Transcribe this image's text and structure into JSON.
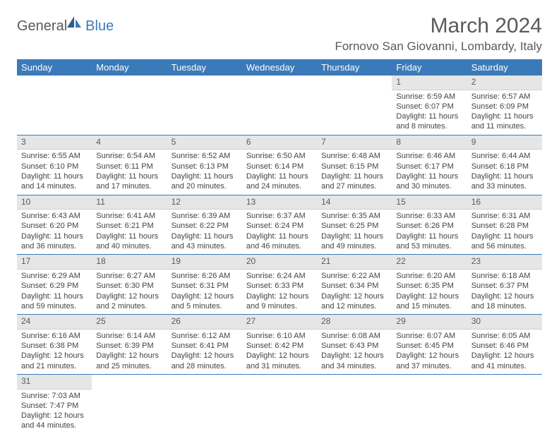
{
  "logo": {
    "part1": "General",
    "part2": "Blue"
  },
  "title": "March 2024",
  "location": "Fornovo San Giovanni, Lombardy, Italy",
  "colors": {
    "header_bg": "#3b7ab8",
    "header_text": "#ffffff",
    "daynum_bg": "#e6e6e6",
    "border": "#3b7ab8",
    "text": "#444444",
    "title_color": "#5a5a5a"
  },
  "weekdays": [
    "Sunday",
    "Monday",
    "Tuesday",
    "Wednesday",
    "Thursday",
    "Friday",
    "Saturday"
  ],
  "rows": [
    [
      null,
      null,
      null,
      null,
      null,
      {
        "n": "1",
        "sr": "6:59 AM",
        "ss": "6:07 PM",
        "dl": "11 hours and 8 minutes."
      },
      {
        "n": "2",
        "sr": "6:57 AM",
        "ss": "6:09 PM",
        "dl": "11 hours and 11 minutes."
      }
    ],
    [
      {
        "n": "3",
        "sr": "6:55 AM",
        "ss": "6:10 PM",
        "dl": "11 hours and 14 minutes."
      },
      {
        "n": "4",
        "sr": "6:54 AM",
        "ss": "6:11 PM",
        "dl": "11 hours and 17 minutes."
      },
      {
        "n": "5",
        "sr": "6:52 AM",
        "ss": "6:13 PM",
        "dl": "11 hours and 20 minutes."
      },
      {
        "n": "6",
        "sr": "6:50 AM",
        "ss": "6:14 PM",
        "dl": "11 hours and 24 minutes."
      },
      {
        "n": "7",
        "sr": "6:48 AM",
        "ss": "6:15 PM",
        "dl": "11 hours and 27 minutes."
      },
      {
        "n": "8",
        "sr": "6:46 AM",
        "ss": "6:17 PM",
        "dl": "11 hours and 30 minutes."
      },
      {
        "n": "9",
        "sr": "6:44 AM",
        "ss": "6:18 PM",
        "dl": "11 hours and 33 minutes."
      }
    ],
    [
      {
        "n": "10",
        "sr": "6:43 AM",
        "ss": "6:20 PM",
        "dl": "11 hours and 36 minutes."
      },
      {
        "n": "11",
        "sr": "6:41 AM",
        "ss": "6:21 PM",
        "dl": "11 hours and 40 minutes."
      },
      {
        "n": "12",
        "sr": "6:39 AM",
        "ss": "6:22 PM",
        "dl": "11 hours and 43 minutes."
      },
      {
        "n": "13",
        "sr": "6:37 AM",
        "ss": "6:24 PM",
        "dl": "11 hours and 46 minutes."
      },
      {
        "n": "14",
        "sr": "6:35 AM",
        "ss": "6:25 PM",
        "dl": "11 hours and 49 minutes."
      },
      {
        "n": "15",
        "sr": "6:33 AM",
        "ss": "6:26 PM",
        "dl": "11 hours and 53 minutes."
      },
      {
        "n": "16",
        "sr": "6:31 AM",
        "ss": "6:28 PM",
        "dl": "11 hours and 56 minutes."
      }
    ],
    [
      {
        "n": "17",
        "sr": "6:29 AM",
        "ss": "6:29 PM",
        "dl": "11 hours and 59 minutes."
      },
      {
        "n": "18",
        "sr": "6:27 AM",
        "ss": "6:30 PM",
        "dl": "12 hours and 2 minutes."
      },
      {
        "n": "19",
        "sr": "6:26 AM",
        "ss": "6:31 PM",
        "dl": "12 hours and 5 minutes."
      },
      {
        "n": "20",
        "sr": "6:24 AM",
        "ss": "6:33 PM",
        "dl": "12 hours and 9 minutes."
      },
      {
        "n": "21",
        "sr": "6:22 AM",
        "ss": "6:34 PM",
        "dl": "12 hours and 12 minutes."
      },
      {
        "n": "22",
        "sr": "6:20 AM",
        "ss": "6:35 PM",
        "dl": "12 hours and 15 minutes."
      },
      {
        "n": "23",
        "sr": "6:18 AM",
        "ss": "6:37 PM",
        "dl": "12 hours and 18 minutes."
      }
    ],
    [
      {
        "n": "24",
        "sr": "6:16 AM",
        "ss": "6:38 PM",
        "dl": "12 hours and 21 minutes."
      },
      {
        "n": "25",
        "sr": "6:14 AM",
        "ss": "6:39 PM",
        "dl": "12 hours and 25 minutes."
      },
      {
        "n": "26",
        "sr": "6:12 AM",
        "ss": "6:41 PM",
        "dl": "12 hours and 28 minutes."
      },
      {
        "n": "27",
        "sr": "6:10 AM",
        "ss": "6:42 PM",
        "dl": "12 hours and 31 minutes."
      },
      {
        "n": "28",
        "sr": "6:08 AM",
        "ss": "6:43 PM",
        "dl": "12 hours and 34 minutes."
      },
      {
        "n": "29",
        "sr": "6:07 AM",
        "ss": "6:45 PM",
        "dl": "12 hours and 37 minutes."
      },
      {
        "n": "30",
        "sr": "6:05 AM",
        "ss": "6:46 PM",
        "dl": "12 hours and 41 minutes."
      }
    ],
    [
      {
        "n": "31",
        "sr": "7:03 AM",
        "ss": "7:47 PM",
        "dl": "12 hours and 44 minutes."
      },
      null,
      null,
      null,
      null,
      null,
      null
    ]
  ],
  "labels": {
    "sunrise": "Sunrise:",
    "sunset": "Sunset:",
    "daylight": "Daylight:"
  }
}
